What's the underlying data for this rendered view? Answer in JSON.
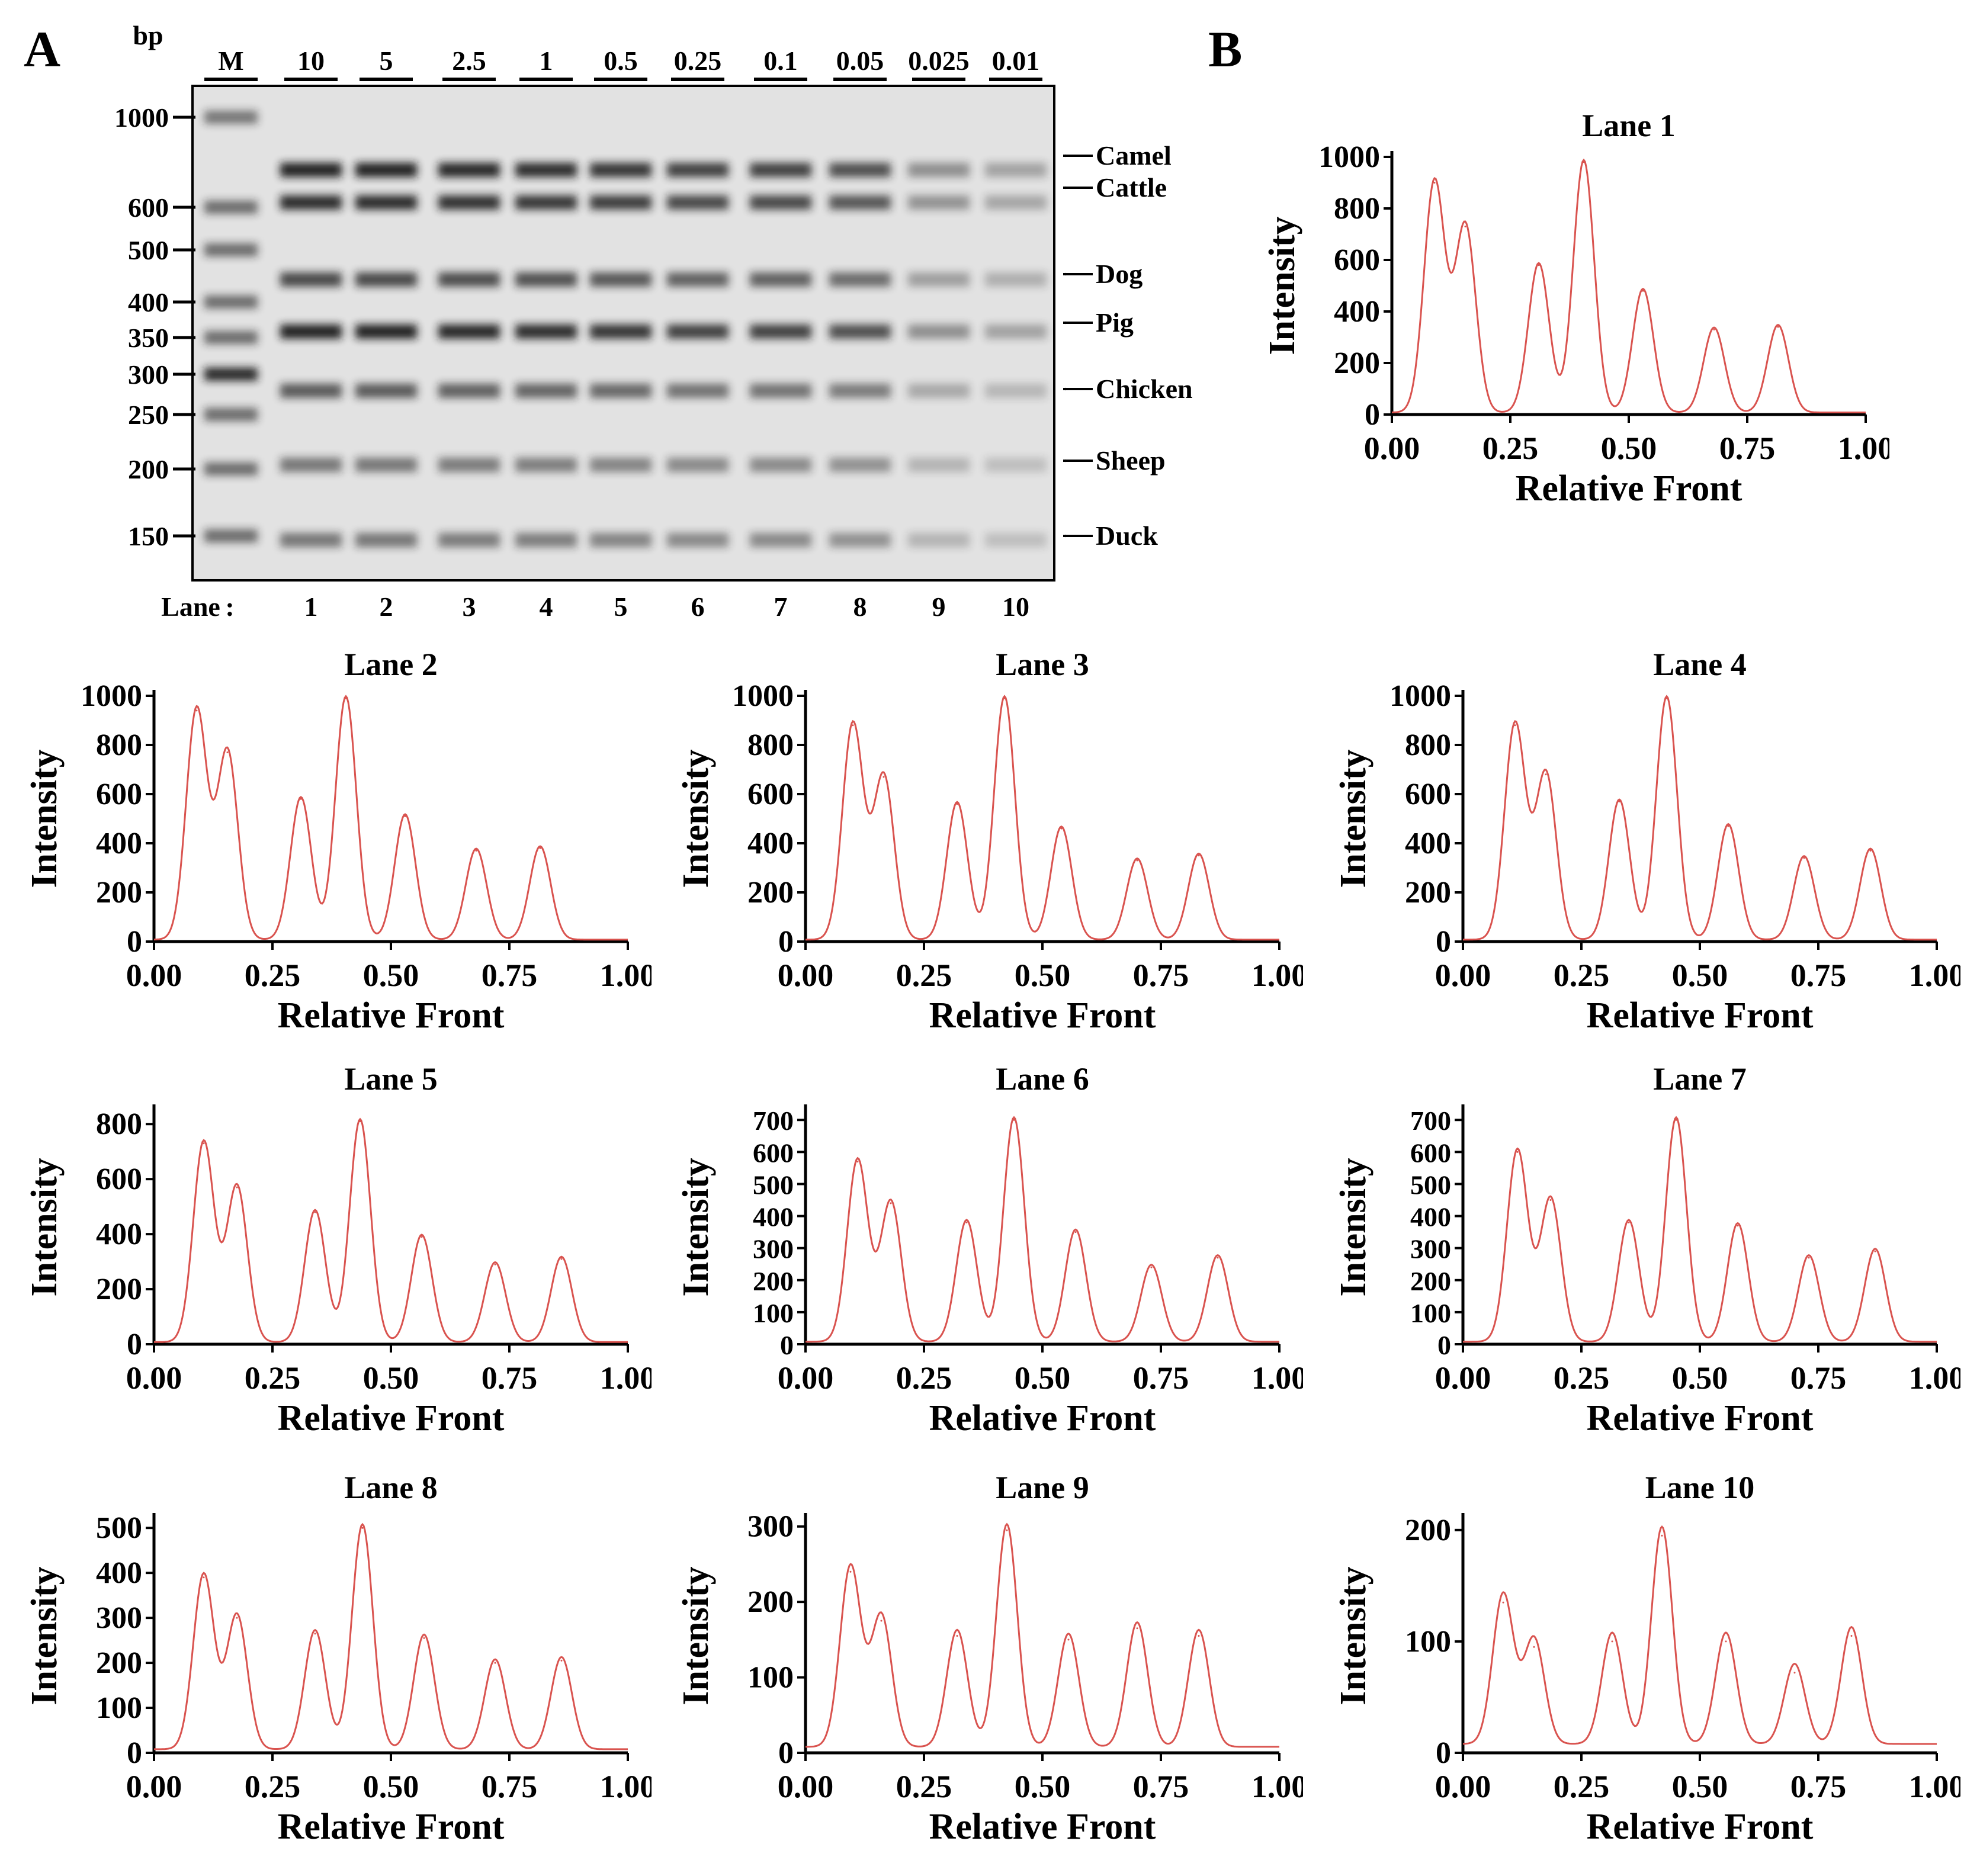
{
  "panel_a_label": "A",
  "panel_b_label": "B",
  "gel": {
    "bp_label": "bp",
    "lane_prefix": "Lane",
    "lane_colon": ":",
    "marker_label": "M",
    "concentrations": [
      "10",
      "5",
      "2.5",
      "1",
      "0.5",
      "0.25",
      "0.1",
      "0.05",
      "0.025",
      "0.01"
    ],
    "lane_numbers": [
      "1",
      "2",
      "3",
      "4",
      "5",
      "6",
      "7",
      "8",
      "9",
      "10"
    ],
    "ladder_sizes": [
      "1000",
      "600",
      "500",
      "400",
      "350",
      "300",
      "250",
      "200",
      "150"
    ],
    "species": [
      "Camel",
      "Cattle",
      "Dog",
      "Pig",
      "Chicken",
      "Sheep",
      "Duck"
    ]
  },
  "colors": {
    "trace": "#d9534f",
    "gel_bg": "#e2e2e2",
    "band": "#1a1a1a"
  },
  "chart_data": [
    {
      "type": "line",
      "title": "Lane 1",
      "xlabel": "Relative Front",
      "ylabel": "Intensity",
      "xlim": [
        0,
        1
      ],
      "ylim": [
        0,
        1000
      ],
      "yticks": [
        0,
        200,
        400,
        600,
        800,
        1000
      ],
      "xticks": [
        "0.00",
        "0.25",
        "0.50",
        "0.75",
        "1.00"
      ],
      "peaks": [
        {
          "x": 0.09,
          "y": 900
        },
        {
          "x": 0.155,
          "y": 730
        },
        {
          "x": 0.31,
          "y": 580
        },
        {
          "x": 0.405,
          "y": 980
        },
        {
          "x": 0.53,
          "y": 480
        },
        {
          "x": 0.68,
          "y": 330
        },
        {
          "x": 0.815,
          "y": 340
        }
      ]
    },
    {
      "type": "line",
      "title": "Lane 2",
      "xlabel": "Relative Front",
      "ylabel": "Intensity",
      "xlim": [
        0,
        1
      ],
      "ylim": [
        0,
        1000
      ],
      "yticks": [
        0,
        200,
        400,
        600,
        800,
        1000
      ],
      "xticks": [
        "0.00",
        "0.25",
        "0.50",
        "0.75",
        "1.00"
      ],
      "peaks": [
        {
          "x": 0.09,
          "y": 940
        },
        {
          "x": 0.155,
          "y": 770
        },
        {
          "x": 0.31,
          "y": 580
        },
        {
          "x": 0.405,
          "y": 990
        },
        {
          "x": 0.53,
          "y": 510
        },
        {
          "x": 0.68,
          "y": 370
        },
        {
          "x": 0.815,
          "y": 380
        }
      ]
    },
    {
      "type": "line",
      "title": "Lane 3",
      "xlabel": "Relative Front",
      "ylabel": "Intensity",
      "xlim": [
        0,
        1
      ],
      "ylim": [
        0,
        1000
      ],
      "yticks": [
        0,
        200,
        400,
        600,
        800,
        1000
      ],
      "xticks": [
        "0.00",
        "0.25",
        "0.50",
        "0.75",
        "1.00"
      ],
      "peaks": [
        {
          "x": 0.1,
          "y": 880
        },
        {
          "x": 0.165,
          "y": 670
        },
        {
          "x": 0.32,
          "y": 560
        },
        {
          "x": 0.42,
          "y": 990
        },
        {
          "x": 0.54,
          "y": 460
        },
        {
          "x": 0.7,
          "y": 330
        },
        {
          "x": 0.83,
          "y": 350
        }
      ]
    },
    {
      "type": "line",
      "title": "Lane 4",
      "xlabel": "Relative Front",
      "ylabel": "Intensity",
      "xlim": [
        0,
        1
      ],
      "ylim": [
        0,
        1000
      ],
      "yticks": [
        0,
        200,
        400,
        600,
        800,
        1000
      ],
      "xticks": [
        "0.00",
        "0.25",
        "0.50",
        "0.75",
        "1.00"
      ],
      "peaks": [
        {
          "x": 0.11,
          "y": 880
        },
        {
          "x": 0.175,
          "y": 680
        },
        {
          "x": 0.33,
          "y": 570
        },
        {
          "x": 0.43,
          "y": 990
        },
        {
          "x": 0.56,
          "y": 470
        },
        {
          "x": 0.72,
          "y": 340
        },
        {
          "x": 0.86,
          "y": 370
        }
      ]
    },
    {
      "type": "line",
      "title": "Lane 5",
      "xlabel": "Relative Front",
      "ylabel": "Intensity",
      "xlim": [
        0,
        1
      ],
      "ylim": [
        0,
        850
      ],
      "yticks": [
        0,
        200,
        400,
        600,
        800
      ],
      "xticks": [
        "0.00",
        "0.25",
        "0.50",
        "0.75",
        "1.00"
      ],
      "peaks": [
        {
          "x": 0.105,
          "y": 730
        },
        {
          "x": 0.175,
          "y": 570
        },
        {
          "x": 0.34,
          "y": 480
        },
        {
          "x": 0.435,
          "y": 810
        },
        {
          "x": 0.565,
          "y": 390
        },
        {
          "x": 0.72,
          "y": 290
        },
        {
          "x": 0.86,
          "y": 310
        }
      ]
    },
    {
      "type": "line",
      "title": "Lane 6",
      "xlabel": "Relative Front",
      "ylabel": "Intensity",
      "xlim": [
        0,
        1
      ],
      "ylim": [
        0,
        730
      ],
      "yticks": [
        0,
        100,
        200,
        300,
        400,
        500,
        600,
        700
      ],
      "xticks": [
        "0.00",
        "0.25",
        "0.50",
        "0.75",
        "1.00"
      ],
      "peaks": [
        {
          "x": 0.11,
          "y": 570
        },
        {
          "x": 0.18,
          "y": 440
        },
        {
          "x": 0.34,
          "y": 380
        },
        {
          "x": 0.44,
          "y": 700
        },
        {
          "x": 0.57,
          "y": 350
        },
        {
          "x": 0.73,
          "y": 240
        },
        {
          "x": 0.87,
          "y": 270
        }
      ]
    },
    {
      "type": "line",
      "title": "Lane 7",
      "xlabel": "Relative Front",
      "ylabel": "Intensity",
      "xlim": [
        0,
        1
      ],
      "ylim": [
        0,
        730
      ],
      "yticks": [
        0,
        100,
        200,
        300,
        400,
        500,
        600,
        700
      ],
      "xticks": [
        "0.00",
        "0.25",
        "0.50",
        "0.75",
        "1.00"
      ],
      "peaks": [
        {
          "x": 0.115,
          "y": 600
        },
        {
          "x": 0.185,
          "y": 450
        },
        {
          "x": 0.35,
          "y": 380
        },
        {
          "x": 0.45,
          "y": 700
        },
        {
          "x": 0.58,
          "y": 370
        },
        {
          "x": 0.73,
          "y": 270
        },
        {
          "x": 0.87,
          "y": 290
        }
      ]
    },
    {
      "type": "line",
      "title": "Lane 8",
      "xlabel": "Relative Front",
      "ylabel": "Intensity",
      "xlim": [
        0,
        1
      ],
      "ylim": [
        0,
        520
      ],
      "yticks": [
        0,
        100,
        200,
        300,
        400,
        500
      ],
      "xticks": [
        "0.00",
        "0.25",
        "0.50",
        "0.75",
        "1.00"
      ],
      "peaks": [
        {
          "x": 0.105,
          "y": 390
        },
        {
          "x": 0.175,
          "y": 300
        },
        {
          "x": 0.34,
          "y": 265
        },
        {
          "x": 0.44,
          "y": 500
        },
        {
          "x": 0.57,
          "y": 255
        },
        {
          "x": 0.72,
          "y": 200
        },
        {
          "x": 0.86,
          "y": 205
        }
      ]
    },
    {
      "type": "line",
      "title": "Lane 9",
      "xlabel": "Relative Front",
      "ylabel": "Intensity",
      "xlim": [
        0,
        1
      ],
      "ylim": [
        0,
        310
      ],
      "yticks": [
        0,
        100,
        200,
        300
      ],
      "xticks": [
        "0.00",
        "0.25",
        "0.50",
        "0.75",
        "1.00"
      ],
      "peaks": [
        {
          "x": 0.095,
          "y": 240
        },
        {
          "x": 0.16,
          "y": 175
        },
        {
          "x": 0.32,
          "y": 155
        },
        {
          "x": 0.425,
          "y": 295
        },
        {
          "x": 0.555,
          "y": 150
        },
        {
          "x": 0.7,
          "y": 165
        },
        {
          "x": 0.83,
          "y": 155
        }
      ]
    },
    {
      "type": "line",
      "title": "Lane 10",
      "xlabel": "Relative Front",
      "ylabel": "Intensity",
      "xlim": [
        0,
        1
      ],
      "ylim": [
        0,
        210
      ],
      "yticks": [
        0,
        100,
        200
      ],
      "xticks": [
        "0.00",
        "0.25",
        "0.50",
        "0.75",
        "1.00"
      ],
      "peaks": [
        {
          "x": 0.085,
          "y": 135
        },
        {
          "x": 0.15,
          "y": 95
        },
        {
          "x": 0.315,
          "y": 100
        },
        {
          "x": 0.42,
          "y": 195
        },
        {
          "x": 0.555,
          "y": 100
        },
        {
          "x": 0.7,
          "y": 72
        },
        {
          "x": 0.82,
          "y": 105
        }
      ]
    }
  ]
}
